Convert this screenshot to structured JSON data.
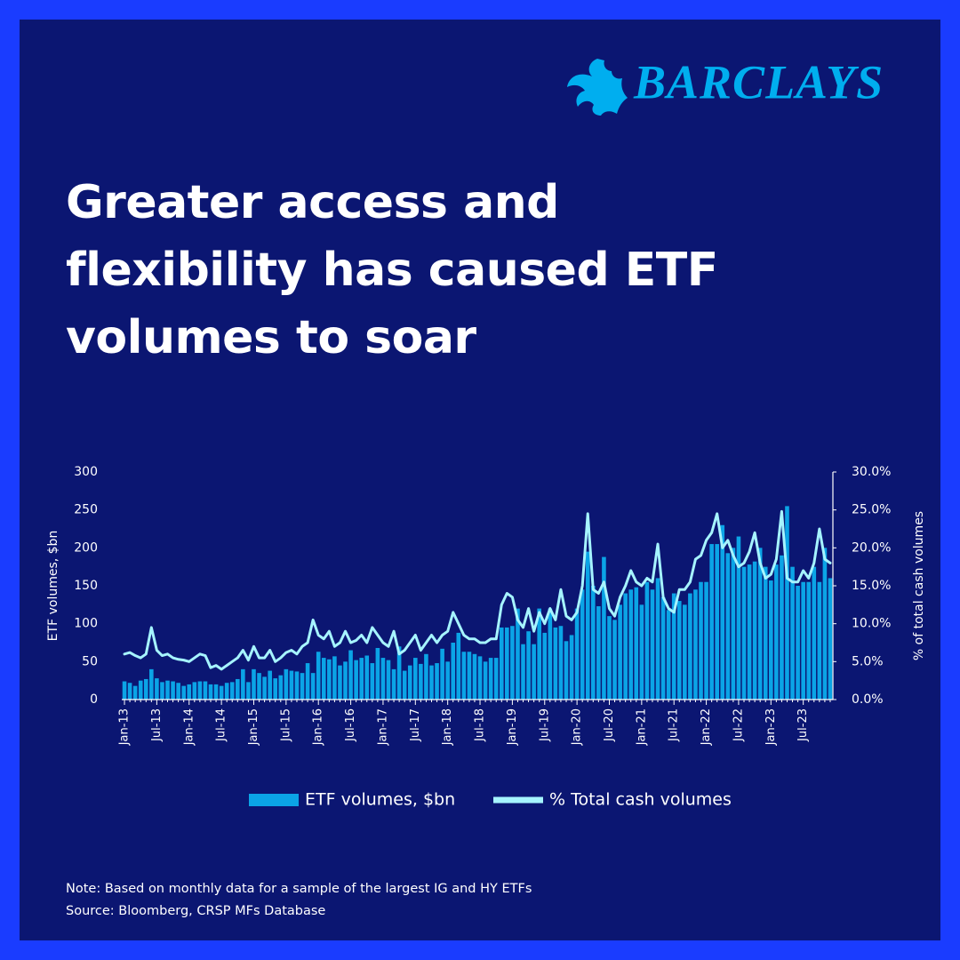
{
  "brand": "BARCLAYS",
  "chart_data": {
    "type": "bar",
    "title": "Greater access and flexibility has caused ETF volumes to soar",
    "ylabel": "ETF volumes, $bn",
    "y2label": "% of total cash volumes",
    "notes": [
      "Note: Based on monthly data for a sample of the largest IG and HY ETFs",
      "Source: Bloomberg, CRSP MFs Database"
    ],
    "categories": [
      "Jan-13",
      null,
      null,
      null,
      null,
      null,
      "Jul-13",
      null,
      null,
      null,
      null,
      null,
      "Jan-14",
      null,
      null,
      null,
      null,
      null,
      "Jul-14",
      null,
      null,
      null,
      null,
      null,
      "Jan-15",
      null,
      null,
      null,
      null,
      null,
      "Jul-15",
      null,
      null,
      null,
      null,
      null,
      "Jan-16",
      null,
      null,
      null,
      null,
      null,
      "Jul-16",
      null,
      null,
      null,
      null,
      null,
      "Jan-17",
      null,
      null,
      null,
      null,
      null,
      "Jul-17",
      null,
      null,
      null,
      null,
      null,
      "Jan-18",
      null,
      null,
      null,
      null,
      null,
      "Jul-18",
      null,
      null,
      null,
      null,
      null,
      "Jan-19",
      null,
      null,
      null,
      null,
      null,
      "Jul-19",
      null,
      null,
      null,
      null,
      null,
      "Jan-20",
      null,
      null,
      null,
      null,
      null,
      "Jul-20",
      null,
      null,
      null,
      null,
      null,
      "Jan-21",
      null,
      null,
      null,
      null,
      null,
      "Jul-21",
      null,
      null,
      null,
      null,
      null,
      "Jan-22",
      null,
      null,
      null,
      null,
      null,
      "Jul-22",
      null,
      null,
      null,
      null,
      null,
      "Jan-23",
      null,
      null,
      null,
      null,
      null,
      "Jul-23",
      null,
      null,
      null,
      null,
      null
    ],
    "series": [
      {
        "name": "ETF volumes, $bn",
        "color": "#0ba4e6",
        "values": [
          24,
          22,
          18,
          25,
          27,
          40,
          28,
          23,
          25,
          24,
          22,
          18,
          20,
          23,
          24,
          24,
          20,
          20,
          18,
          22,
          23,
          27,
          40,
          23,
          40,
          35,
          30,
          38,
          28,
          32,
          40,
          38,
          37,
          35,
          48,
          35,
          63,
          55,
          53,
          57,
          45,
          50,
          65,
          52,
          55,
          58,
          48,
          68,
          55,
          52,
          40,
          70,
          38,
          45,
          55,
          47,
          60,
          45,
          48,
          67,
          50,
          75,
          88,
          63,
          63,
          60,
          57,
          50,
          55,
          55,
          95,
          95,
          97,
          120,
          73,
          90,
          73,
          120,
          88,
          120,
          95,
          97,
          77,
          85,
          120,
          145,
          195,
          150,
          123,
          188,
          110,
          105,
          125,
          140,
          145,
          148,
          125,
          155,
          145,
          160,
          135,
          118,
          140,
          130,
          125,
          140,
          145,
          155,
          155,
          205,
          205,
          230,
          193,
          200,
          215,
          175,
          178,
          182,
          200,
          175,
          157,
          178,
          190,
          255,
          175,
          150,
          155,
          155,
          175,
          155,
          200,
          160
        ]
      },
      {
        "name": "% Total cash volumes",
        "type": "line",
        "axis": "y2",
        "color": "#a6f4ff",
        "values": [
          6.0,
          6.2,
          5.8,
          5.5,
          6.0,
          9.5,
          6.5,
          5.8,
          6.0,
          5.5,
          5.3,
          5.2,
          5.0,
          5.5,
          6.0,
          5.8,
          4.2,
          4.5,
          4.0,
          4.5,
          5.0,
          5.5,
          6.5,
          5.2,
          7.0,
          5.5,
          5.5,
          6.5,
          5.0,
          5.5,
          6.2,
          6.5,
          6.0,
          7.0,
          7.5,
          10.5,
          8.5,
          8.0,
          9.0,
          7.0,
          7.5,
          9.0,
          7.5,
          7.8,
          8.5,
          7.5,
          9.5,
          8.5,
          7.5,
          7.0,
          9.0,
          6.0,
          6.5,
          7.5,
          8.5,
          6.5,
          7.5,
          8.5,
          7.5,
          8.5,
          9.0,
          11.5,
          10.0,
          8.5,
          8.0,
          8.0,
          7.5,
          7.5,
          8.0,
          8.0,
          12.5,
          14.0,
          13.5,
          10.5,
          9.5,
          12.0,
          9.0,
          11.5,
          10.0,
          12.0,
          10.5,
          14.5,
          11.0,
          10.5,
          11.5,
          15.0,
          24.5,
          14.5,
          14.0,
          15.5,
          12.0,
          11.0,
          13.5,
          15.0,
          17.0,
          15.5,
          15.0,
          16.0,
          15.5,
          20.5,
          13.5,
          12.0,
          11.5,
          14.5,
          14.5,
          15.5,
          18.5,
          19.0,
          21.0,
          22.0,
          24.5,
          20.0,
          21.0,
          19.0,
          17.5,
          18.0,
          19.5,
          22.0,
          18.0,
          16.0,
          16.5,
          18.5,
          24.8,
          16.0,
          15.5,
          15.5,
          17.0,
          16.0,
          18.0,
          22.5,
          18.5,
          18.0
        ]
      }
    ],
    "ylim": [
      0,
      300
    ],
    "yticks": [
      0,
      50,
      100,
      150,
      200,
      250,
      300
    ],
    "y2lim": [
      0,
      30
    ],
    "y2ticks": [
      {
        "value": 0,
        "label": "0.0%"
      },
      {
        "value": 5,
        "label": "5.0%"
      },
      {
        "value": 10,
        "label": "10.0%"
      },
      {
        "value": 15,
        "label": "15.0%"
      },
      {
        "value": 20,
        "label": "20.0%"
      },
      {
        "value": 25,
        "label": "25.0%"
      },
      {
        "value": 30,
        "label": "30.0%"
      }
    ],
    "grid": false,
    "legend": "bottom"
  }
}
